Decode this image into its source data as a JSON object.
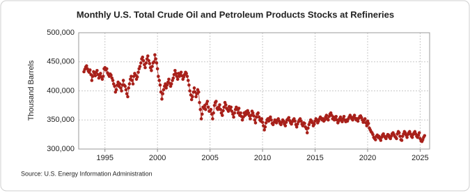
{
  "chart_data": {
    "type": "line",
    "title": "Monthly U.S. Total Crude Oil and Petroleum Products Stocks at Refineries",
    "y_label": "Thousand Barrels",
    "source": "Source: U.S. Energy Information Administration",
    "color": "#a8201a",
    "grid": true,
    "xlim": [
      1992.5,
      2025.9
    ],
    "ylim": [
      300000,
      500000
    ],
    "xticks": [
      1995,
      2000,
      2005,
      2010,
      2015,
      2020,
      2025
    ],
    "yticks": [
      {
        "value": 300000,
        "label": "300,000"
      },
      {
        "value": 350000,
        "label": "350,000"
      },
      {
        "value": 400000,
        "label": "400,000"
      },
      {
        "value": 450000,
        "label": "450,000"
      },
      {
        "value": 500000,
        "label": "500,000"
      }
    ],
    "x": [
      1993,
      1993.08,
      1993.17,
      1993.25,
      1993.33,
      1993.42,
      1993.5,
      1993.58,
      1993.67,
      1993.75,
      1993.83,
      1993.92,
      1994,
      1994.08,
      1994.17,
      1994.25,
      1994.33,
      1994.42,
      1994.5,
      1994.58,
      1994.67,
      1994.75,
      1994.83,
      1994.92,
      1995,
      1995.08,
      1995.17,
      1995.25,
      1995.33,
      1995.42,
      1995.5,
      1995.58,
      1995.67,
      1995.75,
      1995.83,
      1995.92,
      1996,
      1996.08,
      1996.17,
      1996.25,
      1996.33,
      1996.42,
      1996.5,
      1996.58,
      1996.67,
      1996.75,
      1996.83,
      1996.92,
      1997,
      1997.08,
      1997.17,
      1997.25,
      1997.33,
      1997.42,
      1997.5,
      1997.58,
      1997.67,
      1997.75,
      1997.83,
      1997.92,
      1998,
      1998.08,
      1998.17,
      1998.25,
      1998.33,
      1998.42,
      1998.5,
      1998.58,
      1998.67,
      1998.75,
      1998.83,
      1998.92,
      1999,
      1999.08,
      1999.17,
      1999.25,
      1999.33,
      1999.42,
      1999.5,
      1999.58,
      1999.67,
      1999.75,
      1999.83,
      1999.92,
      2000,
      2000.08,
      2000.17,
      2000.25,
      2000.33,
      2000.42,
      2000.5,
      2000.58,
      2000.67,
      2000.75,
      2000.83,
      2000.92,
      2001,
      2001.08,
      2001.17,
      2001.25,
      2001.33,
      2001.42,
      2001.5,
      2001.58,
      2001.67,
      2001.75,
      2001.83,
      2001.92,
      2002,
      2002.08,
      2002.17,
      2002.25,
      2002.33,
      2002.42,
      2002.5,
      2002.58,
      2002.67,
      2002.75,
      2002.83,
      2002.92,
      2003,
      2003.08,
      2003.17,
      2003.25,
      2003.33,
      2003.42,
      2003.5,
      2003.58,
      2003.67,
      2003.75,
      2003.83,
      2003.92,
      2004,
      2004.08,
      2004.17,
      2004.25,
      2004.33,
      2004.42,
      2004.5,
      2004.58,
      2004.67,
      2004.75,
      2004.83,
      2004.92,
      2005,
      2005.08,
      2005.17,
      2005.25,
      2005.33,
      2005.42,
      2005.5,
      2005.58,
      2005.67,
      2005.75,
      2005.83,
      2005.92,
      2006,
      2006.08,
      2006.17,
      2006.25,
      2006.33,
      2006.42,
      2006.5,
      2006.58,
      2006.67,
      2006.75,
      2006.83,
      2006.92,
      2007,
      2007.08,
      2007.17,
      2007.25,
      2007.33,
      2007.42,
      2007.5,
      2007.58,
      2007.67,
      2007.75,
      2007.83,
      2007.92,
      2008,
      2008.08,
      2008.17,
      2008.25,
      2008.33,
      2008.42,
      2008.5,
      2008.58,
      2008.67,
      2008.75,
      2008.83,
      2008.92,
      2009,
      2009.08,
      2009.17,
      2009.25,
      2009.33,
      2009.42,
      2009.5,
      2009.58,
      2009.67,
      2009.75,
      2009.83,
      2009.92,
      2010,
      2010.08,
      2010.17,
      2010.25,
      2010.33,
      2010.42,
      2010.5,
      2010.58,
      2010.67,
      2010.75,
      2010.83,
      2010.92,
      2011,
      2011.08,
      2011.17,
      2011.25,
      2011.33,
      2011.42,
      2011.5,
      2011.58,
      2011.67,
      2011.75,
      2011.83,
      2011.92,
      2012,
      2012.08,
      2012.17,
      2012.25,
      2012.33,
      2012.42,
      2012.5,
      2012.58,
      2012.67,
      2012.75,
      2012.83,
      2012.92,
      2013,
      2013.08,
      2013.17,
      2013.25,
      2013.33,
      2013.42,
      2013.5,
      2013.58,
      2013.67,
      2013.75,
      2013.83,
      2013.92,
      2014,
      2014.08,
      2014.17,
      2014.25,
      2014.33,
      2014.42,
      2014.5,
      2014.58,
      2014.67,
      2014.75,
      2014.83,
      2014.92,
      2015,
      2015.08,
      2015.17,
      2015.25,
      2015.33,
      2015.42,
      2015.5,
      2015.58,
      2015.67,
      2015.75,
      2015.83,
      2015.92,
      2016,
      2016.08,
      2016.17,
      2016.25,
      2016.33,
      2016.42,
      2016.5,
      2016.58,
      2016.67,
      2016.75,
      2016.83,
      2016.92,
      2017,
      2017.08,
      2017.17,
      2017.25,
      2017.33,
      2017.42,
      2017.5,
      2017.58,
      2017.67,
      2017.75,
      2017.83,
      2017.92,
      2018,
      2018.08,
      2018.17,
      2018.25,
      2018.33,
      2018.42,
      2018.5,
      2018.58,
      2018.67,
      2018.75,
      2018.83,
      2018.92,
      2019,
      2019.08,
      2019.17,
      2019.25,
      2019.33,
      2019.42,
      2019.5,
      2019.58,
      2019.67,
      2019.75,
      2019.83,
      2019.92,
      2020,
      2020.08,
      2020.17,
      2020.25,
      2020.33,
      2020.42,
      2020.5,
      2020.58,
      2020.67,
      2020.75,
      2020.83,
      2020.92,
      2021,
      2021.08,
      2021.17,
      2021.25,
      2021.33,
      2021.42,
      2021.5,
      2021.58,
      2021.67,
      2021.75,
      2021.83,
      2021.92,
      2022,
      2022.08,
      2022.17,
      2022.25,
      2022.33,
      2022.42,
      2022.5,
      2022.58,
      2022.67,
      2022.75,
      2022.83,
      2022.92,
      2023,
      2023.08,
      2023.17,
      2023.25,
      2023.33,
      2023.42,
      2023.5,
      2023.58,
      2023.67,
      2023.75,
      2023.83,
      2023.92,
      2024,
      2024.08,
      2024.17,
      2024.25,
      2024.33,
      2024.42,
      2024.5,
      2024.58,
      2024.67,
      2024.75,
      2024.83,
      2024.92,
      2025,
      2025.08,
      2025.17,
      2025.25,
      2025.33,
      2025.42
    ],
    "values": [
      433000,
      437000,
      441000,
      443000,
      438000,
      434000,
      432000,
      436000,
      428000,
      418000,
      425000,
      433000,
      430000,
      426000,
      432000,
      435000,
      428000,
      422000,
      426000,
      430000,
      424000,
      420000,
      425000,
      438000,
      440000,
      436000,
      438000,
      431000,
      428000,
      425000,
      429000,
      427000,
      422000,
      418000,
      412000,
      408000,
      398000,
      402000,
      410000,
      415000,
      408000,
      412000,
      405000,
      400000,
      410000,
      418000,
      410000,
      408000,
      402000,
      395000,
      390000,
      405000,
      412000,
      420000,
      425000,
      418000,
      412000,
      425000,
      430000,
      427000,
      420000,
      424000,
      432000,
      438000,
      442000,
      448000,
      455000,
      458000,
      452000,
      445000,
      440000,
      448000,
      455000,
      460000,
      452000,
      447000,
      440000,
      435000,
      442000,
      448000,
      450000,
      462000,
      455000,
      448000,
      438000,
      425000,
      418000,
      410000,
      398000,
      386000,
      395000,
      402000,
      408000,
      412000,
      405000,
      410000,
      415000,
      420000,
      413000,
      408000,
      412000,
      418000,
      422000,
      428000,
      435000,
      430000,
      425000,
      420000,
      430000,
      425000,
      428000,
      432000,
      426000,
      420000,
      424000,
      428000,
      432000,
      430000,
      425000,
      418000,
      410000,
      400000,
      393000,
      385000,
      390000,
      398000,
      405000,
      398000,
      390000,
      395000,
      402000,
      398000,
      380000,
      368000,
      352000,
      360000,
      372000,
      370000,
      375000,
      368000,
      378000,
      382000,
      372000,
      365000,
      365000,
      368000,
      360000,
      352000,
      362000,
      375000,
      380000,
      382000,
      370000,
      368000,
      372000,
      376000,
      368000,
      362000,
      358000,
      366000,
      372000,
      380000,
      376000,
      370000,
      368000,
      365000,
      373000,
      368000,
      372000,
      365000,
      360000,
      355000,
      362000,
      368000,
      372000,
      368000,
      362000,
      370000,
      358000,
      362000,
      356000,
      350000,
      355000,
      362000,
      358000,
      364000,
      360000,
      366000,
      362000,
      357000,
      352000,
      358000,
      365000,
      362000,
      357000,
      350000,
      345000,
      355000,
      360000,
      362000,
      355000,
      350000,
      348000,
      352000,
      346000,
      340000,
      333000,
      338000,
      345000,
      350000,
      352000,
      348000,
      353000,
      355000,
      350000,
      344000,
      342000,
      346000,
      350000,
      347000,
      345000,
      350000,
      352000,
      348000,
      344000,
      342000,
      346000,
      350000,
      348000,
      343000,
      340000,
      346000,
      350000,
      352000,
      354000,
      349000,
      345000,
      343000,
      347000,
      350000,
      352000,
      348000,
      342000,
      338000,
      343000,
      347000,
      350000,
      352000,
      348000,
      343000,
      340000,
      345000,
      344000,
      338000,
      335000,
      328000,
      336000,
      342000,
      346000,
      350000,
      348000,
      345000,
      340000,
      343000,
      348000,
      352000,
      350000,
      345000,
      348000,
      352000,
      355000,
      353000,
      350000,
      352000,
      348000,
      350000,
      355000,
      358000,
      352000,
      350000,
      356000,
      360000,
      362000,
      358000,
      352000,
      355000,
      350000,
      353000,
      356000,
      350000,
      345000,
      348000,
      352000,
      355000,
      350000,
      347000,
      352000,
      356000,
      350000,
      347000,
      350000,
      348000,
      352000,
      355000,
      358000,
      355000,
      352000,
      350000,
      355000,
      358000,
      353000,
      350000,
      352000,
      348000,
      353000,
      356000,
      357000,
      354000,
      350000,
      346000,
      350000,
      352000,
      345000,
      340000,
      348000,
      344000,
      336000,
      333000,
      330000,
      328000,
      325000,
      320000,
      318000,
      316000,
      322000,
      324000,
      320000,
      322000,
      318000,
      315000,
      320000,
      324000,
      326000,
      322000,
      320000,
      318000,
      322000,
      325000,
      324000,
      320000,
      318000,
      322000,
      326000,
      328000,
      325000,
      322000,
      320000,
      318000,
      326000,
      330000,
      328000,
      322000,
      316000,
      315000,
      322000,
      326000,
      330000,
      328000,
      324000,
      320000,
      325000,
      328000,
      330000,
      326000,
      322000,
      320000,
      325000,
      328000,
      330000,
      326000,
      322000,
      320000,
      324000,
      328000,
      318000,
      314000,
      313000,
      316000,
      320000,
      323000
    ]
  }
}
